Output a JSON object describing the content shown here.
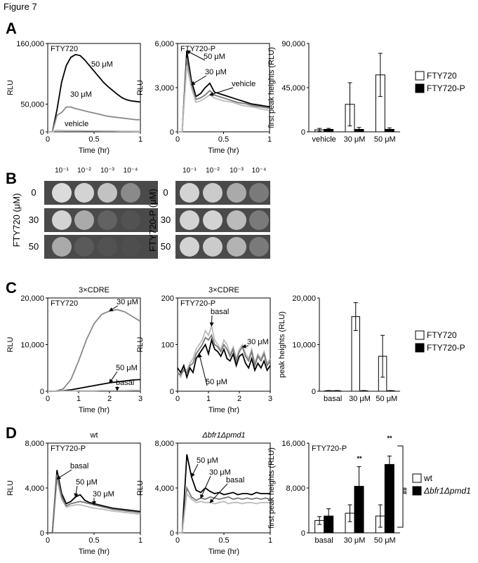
{
  "figure_label": "Figure 7",
  "panel_letters": [
    "A",
    "B",
    "C",
    "D"
  ],
  "plates": {
    "dilutions": [
      "10⁻¹",
      "10⁻²",
      "10⁻³",
      "10⁻⁴"
    ],
    "left": {
      "ylabel": "FTY720 (μM)",
      "rows": [
        "0",
        "30",
        "50"
      ]
    },
    "right": {
      "ylabel": "FTY720-P (μM)",
      "rows": [
        "0",
        "30",
        "50"
      ]
    }
  },
  "chart_data": [
    {
      "type": "line",
      "label": "FTY720",
      "ylabel": "RLU",
      "xlabel": "Time (hr)",
      "xlim": [
        0,
        1
      ],
      "xticks": [
        0,
        0.5,
        1
      ],
      "ylim": [
        0,
        160000
      ],
      "yticks": [
        0,
        {
          "value": 50000,
          "label": "50,000"
        },
        {
          "value": 160000,
          "label": "160,000"
        }
      ],
      "x": [
        0,
        0.05,
        0.1,
        0.15,
        0.2,
        0.25,
        0.3,
        0.35,
        0.4,
        0.45,
        0.5,
        0.55,
        0.6,
        0.65,
        0.7,
        0.75,
        0.8,
        0.85,
        0.9,
        0.95,
        1
      ],
      "series": [
        {
          "name": "50 μM",
          "color": "#000000",
          "values": [
            0,
            0,
            40000,
            90000,
            120000,
            135000,
            140000,
            138000,
            130000,
            120000,
            110000,
            100000,
            90000,
            82000,
            75000,
            68000,
            62000,
            58000,
            56000,
            55000,
            54000
          ]
        },
        {
          "name": "30 μM",
          "color": "#888888",
          "values": [
            0,
            0,
            30000,
            35000,
            45000,
            45000,
            42000,
            40000,
            38000,
            36000,
            34000,
            32000,
            30000,
            28000,
            27000,
            26000,
            25000,
            24000,
            23000,
            22000,
            22000
          ]
        },
        {
          "name": "vehicle",
          "color": "#bbbbbb",
          "values": [
            0,
            0,
            3000,
            2500,
            2000,
            2000,
            2000,
            2000,
            1800,
            1800,
            1600,
            1600,
            1500,
            1500,
            1400,
            1300,
            1200,
            1200,
            1100,
            1000,
            1000
          ]
        }
      ]
    },
    {
      "type": "line",
      "label": "FTY720-P",
      "ylabel": "RLU",
      "xlabel": "Time (hr)",
      "xlim": [
        0,
        1
      ],
      "xticks": [
        0,
        0.5,
        1
      ],
      "ylim": [
        0,
        6000
      ],
      "yticks": [
        0,
        {
          "value": 3000,
          "label": "3,000"
        },
        {
          "value": 6000,
          "label": "6,000"
        }
      ],
      "x": [
        0,
        0.05,
        0.1,
        0.15,
        0.2,
        0.25,
        0.3,
        0.35,
        0.4,
        0.45,
        0.5,
        0.55,
        0.6,
        0.65,
        0.7,
        0.75,
        0.8,
        0.85,
        0.9,
        0.95,
        1
      ],
      "series": [
        {
          "name": "50 μM",
          "color": "#000000",
          "values": [
            0,
            0,
            5500,
            3500,
            2400,
            2600,
            3000,
            3300,
            2700,
            2600,
            2500,
            2400,
            2300,
            2200,
            2100,
            2000,
            1900,
            1850,
            1800,
            1750,
            1700
          ]
        },
        {
          "name": "30 μM",
          "color": "#777777",
          "values": [
            0,
            0,
            5000,
            3200,
            2200,
            2300,
            2500,
            2800,
            2500,
            2400,
            2300,
            2200,
            2100,
            2000,
            1950,
            1900,
            1800,
            1750,
            1700,
            1650,
            1600
          ]
        },
        {
          "name": "vehicle",
          "color": "#bbbbbb",
          "values": [
            0,
            0,
            4500,
            3000,
            2000,
            2100,
            2300,
            2500,
            2300,
            2200,
            2100,
            2050,
            2000,
            1900,
            1800,
            1750,
            1700,
            1650,
            1550,
            1500,
            1450
          ]
        }
      ]
    },
    {
      "type": "bar",
      "ylabel": "first peak heights (RLU)",
      "categories": [
        "vehicle",
        "30 μM",
        "50 μM"
      ],
      "ylim": [
        0,
        90000
      ],
      "yticks": [
        0,
        {
          "value": 45000,
          "label": "45,000"
        },
        {
          "value": 90000,
          "label": "90,000"
        }
      ],
      "series": [
        {
          "name": "FTY720",
          "color": "#ffffff",
          "values": [
            2000,
            28000,
            58000
          ],
          "errors": [
            1500,
            22000,
            22000
          ]
        },
        {
          "name": "FTY720-P",
          "color": "#000000",
          "values": [
            2500,
            2500,
            2500
          ],
          "errors": [
            1000,
            2000,
            1500
          ]
        }
      ]
    },
    {
      "type": "line",
      "title": "3×CDRE",
      "label": "FTY720",
      "ylabel": "RLU",
      "xlabel": "Time (hr)",
      "xlim": [
        0,
        3
      ],
      "xticks": [
        0,
        1,
        2,
        3
      ],
      "ylim": [
        0,
        20000
      ],
      "yticks": [
        0,
        {
          "value": 10000,
          "label": "10,000"
        },
        {
          "value": 20000,
          "label": "20,000"
        }
      ],
      "x": [
        0,
        0.25,
        0.5,
        0.75,
        1,
        1.25,
        1.5,
        1.75,
        2,
        2.25,
        2.5,
        2.75,
        3
      ],
      "series": [
        {
          "name": "30 μM",
          "color": "#888888",
          "values": [
            0,
            0,
            500,
            2500,
            6500,
            11000,
            14500,
            16500,
            17200,
            17500,
            17000,
            16000,
            15000
          ]
        },
        {
          "name": "50 μM",
          "color": "#000000",
          "values": [
            0,
            0,
            100,
            300,
            600,
            900,
            1200,
            1500,
            1800,
            2000,
            2200,
            2400,
            2500
          ]
        },
        {
          "name": "basal",
          "color": "#bbbbbb",
          "values": [
            0,
            0,
            50,
            50,
            100,
            100,
            100,
            150,
            150,
            150,
            150,
            200,
            200
          ]
        }
      ]
    },
    {
      "type": "line",
      "title": "3×CDRE",
      "label": "FTY720-P",
      "ylabel": "RLU",
      "xlabel": "Time (hr)",
      "xlim": [
        0,
        3
      ],
      "xticks": [
        0,
        1,
        2,
        3
      ],
      "ylim": [
        0,
        200
      ],
      "yticks": [
        0,
        100,
        200
      ],
      "x": [
        0,
        0.1,
        0.2,
        0.3,
        0.4,
        0.5,
        0.6,
        0.7,
        0.8,
        0.9,
        1,
        1.1,
        1.2,
        1.3,
        1.4,
        1.5,
        1.6,
        1.7,
        1.8,
        1.9,
        2,
        2.1,
        2.2,
        2.3,
        2.4,
        2.5,
        2.6,
        2.7,
        2.8,
        2.9,
        3
      ],
      "series": [
        {
          "name": "basal",
          "color": "#bbbbbb",
          "values": [
            40,
            30,
            50,
            45,
            60,
            70,
            90,
            100,
            110,
            130,
            120,
            140,
            110,
            100,
            90,
            110,
            100,
            80,
            95,
            70,
            90,
            100,
            80,
            70,
            90,
            60,
            80,
            70,
            85,
            60,
            70
          ]
        },
        {
          "name": "30 μM",
          "color": "#777777",
          "values": [
            40,
            35,
            45,
            40,
            55,
            60,
            80,
            90,
            100,
            115,
            110,
            120,
            100,
            95,
            85,
            100,
            90,
            75,
            90,
            65,
            85,
            95,
            75,
            65,
            85,
            55,
            75,
            65,
            80,
            55,
            65
          ]
        },
        {
          "name": "50 μM",
          "color": "#000000",
          "values": [
            50,
            40,
            55,
            30,
            50,
            40,
            70,
            80,
            90,
            100,
            80,
            110,
            90,
            85,
            75,
            90,
            70,
            65,
            80,
            55,
            75,
            80,
            60,
            50,
            70,
            45,
            60,
            50,
            65,
            45,
            55
          ]
        }
      ]
    },
    {
      "type": "bar",
      "ylabel": "peak heights (RLU)",
      "categories": [
        "basal",
        "30 μM",
        "50 μM"
      ],
      "ylim": [
        0,
        20000
      ],
      "yticks": [
        0,
        {
          "value": 10000,
          "label": "10,000"
        },
        {
          "value": 20000,
          "label": "20,000"
        }
      ],
      "series": [
        {
          "name": "FTY720",
          "color": "#ffffff",
          "values": [
            100,
            16000,
            7500
          ],
          "errors": [
            50,
            3000,
            4500
          ]
        },
        {
          "name": "FTY720-P",
          "color": "#000000",
          "values": [
            100,
            100,
            100
          ],
          "errors": [
            50,
            50,
            50
          ]
        }
      ]
    },
    {
      "type": "line",
      "title": "wt",
      "label": "FTY720-P",
      "ylabel": "RLU",
      "xlabel": "Time (hr)",
      "xlim": [
        0,
        1
      ],
      "xticks": [
        0,
        0.5,
        1
      ],
      "ylim": [
        0,
        8000
      ],
      "yticks": [
        0,
        {
          "value": 4000,
          "label": "4,000"
        },
        {
          "value": 8000,
          "label": "8,000"
        }
      ],
      "x": [
        0,
        0.05,
        0.1,
        0.15,
        0.2,
        0.25,
        0.3,
        0.35,
        0.4,
        0.45,
        0.5,
        0.55,
        0.6,
        0.65,
        0.7,
        0.75,
        0.8,
        0.85,
        0.9,
        0.95,
        1
      ],
      "series": [
        {
          "name": "basal",
          "color": "#bbbbbb",
          "values": [
            0,
            0,
            4800,
            3000,
            2300,
            2400,
            2500,
            2500,
            2400,
            2300,
            2200,
            2150,
            2100,
            2000,
            1950,
            1900,
            1850,
            1800,
            1750,
            1700,
            1650
          ]
        },
        {
          "name": "50 μM",
          "color": "#000000",
          "values": [
            0,
            0,
            5600,
            3500,
            2600,
            2800,
            3200,
            3400,
            2900,
            2700,
            2600,
            2500,
            2400,
            2300,
            2200,
            2150,
            2100,
            2050,
            2000,
            1950,
            1900
          ]
        },
        {
          "name": "30 μM",
          "color": "#777777",
          "values": [
            0,
            0,
            5200,
            3200,
            2400,
            2600,
            2700,
            2800,
            2700,
            2600,
            2500,
            2400,
            2300,
            2200,
            2100,
            2050,
            2000,
            1950,
            1900,
            1850,
            1800
          ]
        }
      ]
    },
    {
      "type": "line",
      "title": "Δbfr1Δpmd1",
      "ylabel": "RLU",
      "xlabel": "Time (hr)",
      "xlim": [
        0,
        1
      ],
      "xticks": [
        0,
        0.5,
        1
      ],
      "ylim": [
        0,
        8000
      ],
      "yticks": [
        0,
        {
          "value": 4000,
          "label": "4,000"
        },
        {
          "value": 8000,
          "label": "8,000"
        }
      ],
      "x": [
        0,
        0.05,
        0.1,
        0.15,
        0.2,
        0.25,
        0.3,
        0.35,
        0.4,
        0.45,
        0.5,
        0.55,
        0.6,
        0.65,
        0.7,
        0.75,
        0.8,
        0.85,
        0.9,
        0.95,
        1
      ],
      "series": [
        {
          "name": "50 μM",
          "color": "#000000",
          "values": [
            0,
            0,
            7000,
            5000,
            3800,
            3600,
            4000,
            3700,
            3500,
            3600,
            3400,
            3500,
            3600,
            3400,
            3500,
            3500,
            3400,
            3600,
            3500,
            3500,
            3500
          ]
        },
        {
          "name": "30 μM",
          "color": "#777777",
          "values": [
            0,
            0,
            4000,
            3200,
            2900,
            3100,
            3000,
            3200,
            3100,
            3000,
            3100,
            3200,
            3000,
            3100,
            3000,
            3100,
            3000,
            3100,
            3000,
            3100,
            3000
          ]
        },
        {
          "name": "basal",
          "color": "#bbbbbb",
          "values": [
            0,
            0,
            3500,
            3000,
            2700,
            2800,
            2700,
            2700,
            2600,
            2700,
            2800,
            2600,
            2700,
            2700,
            2600,
            2700,
            2700,
            2600,
            2700,
            2700,
            2700
          ]
        }
      ]
    },
    {
      "type": "bar",
      "label": "FTY720-P",
      "ylabel": "first peak heights (RLU)",
      "categories": [
        "basal",
        "30 μM",
        "50 μM"
      ],
      "ylim": [
        0,
        16000
      ],
      "yticks": [
        0,
        {
          "value": 8000,
          "label": "8,000"
        },
        {
          "value": 16000,
          "label": "16,000"
        }
      ],
      "annotations": [
        "**",
        "**",
        "##"
      ],
      "series": [
        {
          "name": "wt",
          "color": "#ffffff",
          "values": [
            2200,
            3500,
            3000
          ],
          "errors": [
            700,
            1500,
            2000
          ]
        },
        {
          "name": "Δbfr1Δpmd1",
          "color": "#000000",
          "values": [
            3000,
            8300,
            12200
          ],
          "errors": [
            1300,
            3500,
            1500
          ]
        }
      ]
    }
  ]
}
